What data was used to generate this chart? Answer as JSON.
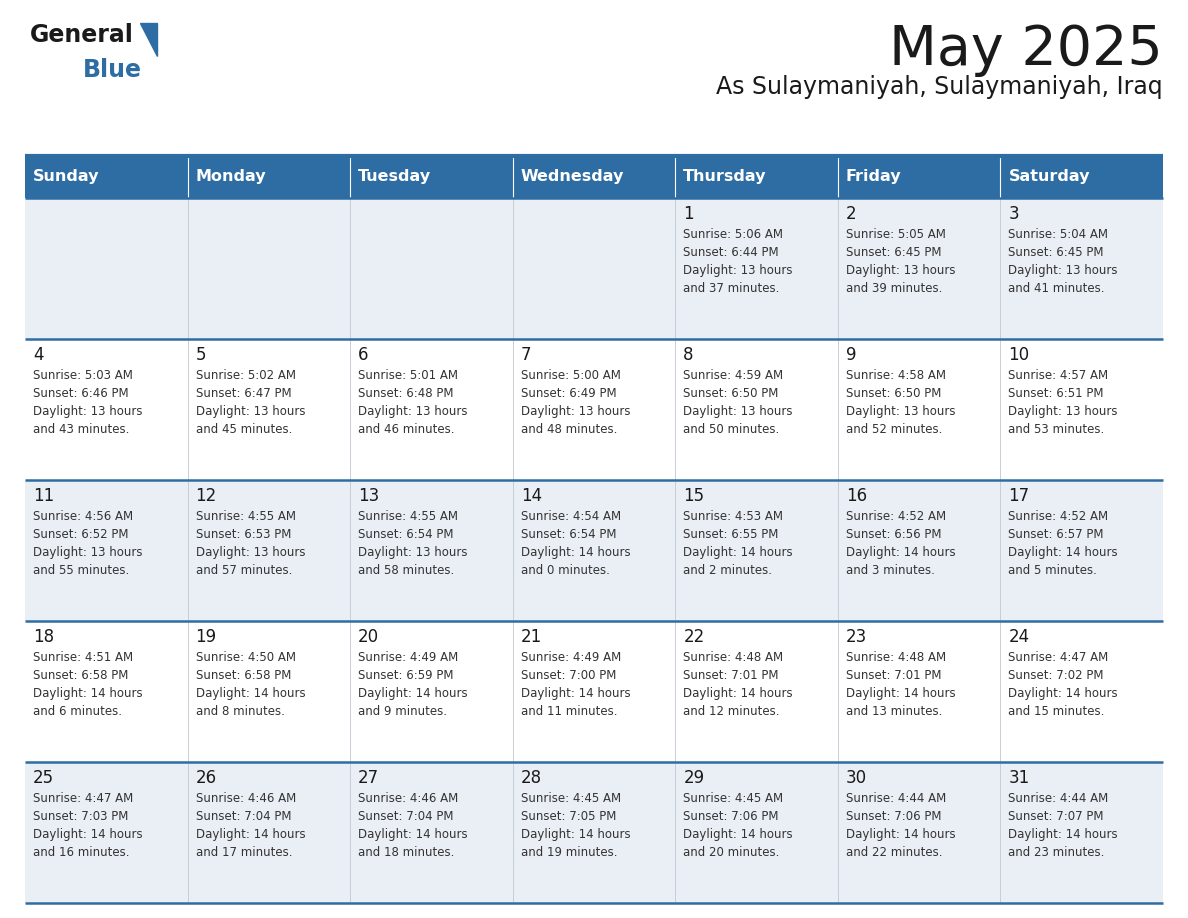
{
  "title": "May 2025",
  "subtitle": "As Sulaymaniyah, Sulaymaniyah, Iraq",
  "days_of_week": [
    "Sunday",
    "Monday",
    "Tuesday",
    "Wednesday",
    "Thursday",
    "Friday",
    "Saturday"
  ],
  "header_bg_color": "#2E6DA4",
  "header_text_color": "#FFFFFF",
  "cell_bg_even": "#EAEFF5",
  "cell_bg_odd": "#FFFFFF",
  "grid_line_color": "#2E6DA4",
  "title_color": "#1a1a1a",
  "subtitle_color": "#1a1a1a",
  "day_number_color": "#1a1a1a",
  "cell_text_color": "#333333",
  "background_color": "#FFFFFF",
  "logo_general_color": "#1a1a1a",
  "logo_blue_color": "#2E6DA4",
  "calendar": [
    [
      {
        "day": "",
        "info": ""
      },
      {
        "day": "",
        "info": ""
      },
      {
        "day": "",
        "info": ""
      },
      {
        "day": "",
        "info": ""
      },
      {
        "day": "1",
        "info": "Sunrise: 5:06 AM\nSunset: 6:44 PM\nDaylight: 13 hours\nand 37 minutes."
      },
      {
        "day": "2",
        "info": "Sunrise: 5:05 AM\nSunset: 6:45 PM\nDaylight: 13 hours\nand 39 minutes."
      },
      {
        "day": "3",
        "info": "Sunrise: 5:04 AM\nSunset: 6:45 PM\nDaylight: 13 hours\nand 41 minutes."
      }
    ],
    [
      {
        "day": "4",
        "info": "Sunrise: 5:03 AM\nSunset: 6:46 PM\nDaylight: 13 hours\nand 43 minutes."
      },
      {
        "day": "5",
        "info": "Sunrise: 5:02 AM\nSunset: 6:47 PM\nDaylight: 13 hours\nand 45 minutes."
      },
      {
        "day": "6",
        "info": "Sunrise: 5:01 AM\nSunset: 6:48 PM\nDaylight: 13 hours\nand 46 minutes."
      },
      {
        "day": "7",
        "info": "Sunrise: 5:00 AM\nSunset: 6:49 PM\nDaylight: 13 hours\nand 48 minutes."
      },
      {
        "day": "8",
        "info": "Sunrise: 4:59 AM\nSunset: 6:50 PM\nDaylight: 13 hours\nand 50 minutes."
      },
      {
        "day": "9",
        "info": "Sunrise: 4:58 AM\nSunset: 6:50 PM\nDaylight: 13 hours\nand 52 minutes."
      },
      {
        "day": "10",
        "info": "Sunrise: 4:57 AM\nSunset: 6:51 PM\nDaylight: 13 hours\nand 53 minutes."
      }
    ],
    [
      {
        "day": "11",
        "info": "Sunrise: 4:56 AM\nSunset: 6:52 PM\nDaylight: 13 hours\nand 55 minutes."
      },
      {
        "day": "12",
        "info": "Sunrise: 4:55 AM\nSunset: 6:53 PM\nDaylight: 13 hours\nand 57 minutes."
      },
      {
        "day": "13",
        "info": "Sunrise: 4:55 AM\nSunset: 6:54 PM\nDaylight: 13 hours\nand 58 minutes."
      },
      {
        "day": "14",
        "info": "Sunrise: 4:54 AM\nSunset: 6:54 PM\nDaylight: 14 hours\nand 0 minutes."
      },
      {
        "day": "15",
        "info": "Sunrise: 4:53 AM\nSunset: 6:55 PM\nDaylight: 14 hours\nand 2 minutes."
      },
      {
        "day": "16",
        "info": "Sunrise: 4:52 AM\nSunset: 6:56 PM\nDaylight: 14 hours\nand 3 minutes."
      },
      {
        "day": "17",
        "info": "Sunrise: 4:52 AM\nSunset: 6:57 PM\nDaylight: 14 hours\nand 5 minutes."
      }
    ],
    [
      {
        "day": "18",
        "info": "Sunrise: 4:51 AM\nSunset: 6:58 PM\nDaylight: 14 hours\nand 6 minutes."
      },
      {
        "day": "19",
        "info": "Sunrise: 4:50 AM\nSunset: 6:58 PM\nDaylight: 14 hours\nand 8 minutes."
      },
      {
        "day": "20",
        "info": "Sunrise: 4:49 AM\nSunset: 6:59 PM\nDaylight: 14 hours\nand 9 minutes."
      },
      {
        "day": "21",
        "info": "Sunrise: 4:49 AM\nSunset: 7:00 PM\nDaylight: 14 hours\nand 11 minutes."
      },
      {
        "day": "22",
        "info": "Sunrise: 4:48 AM\nSunset: 7:01 PM\nDaylight: 14 hours\nand 12 minutes."
      },
      {
        "day": "23",
        "info": "Sunrise: 4:48 AM\nSunset: 7:01 PM\nDaylight: 14 hours\nand 13 minutes."
      },
      {
        "day": "24",
        "info": "Sunrise: 4:47 AM\nSunset: 7:02 PM\nDaylight: 14 hours\nand 15 minutes."
      }
    ],
    [
      {
        "day": "25",
        "info": "Sunrise: 4:47 AM\nSunset: 7:03 PM\nDaylight: 14 hours\nand 16 minutes."
      },
      {
        "day": "26",
        "info": "Sunrise: 4:46 AM\nSunset: 7:04 PM\nDaylight: 14 hours\nand 17 minutes."
      },
      {
        "day": "27",
        "info": "Sunrise: 4:46 AM\nSunset: 7:04 PM\nDaylight: 14 hours\nand 18 minutes."
      },
      {
        "day": "28",
        "info": "Sunrise: 4:45 AM\nSunset: 7:05 PM\nDaylight: 14 hours\nand 19 minutes."
      },
      {
        "day": "29",
        "info": "Sunrise: 4:45 AM\nSunset: 7:06 PM\nDaylight: 14 hours\nand 20 minutes."
      },
      {
        "day": "30",
        "info": "Sunrise: 4:44 AM\nSunset: 7:06 PM\nDaylight: 14 hours\nand 22 minutes."
      },
      {
        "day": "31",
        "info": "Sunrise: 4:44 AM\nSunset: 7:07 PM\nDaylight: 14 hours\nand 23 minutes."
      }
    ]
  ]
}
